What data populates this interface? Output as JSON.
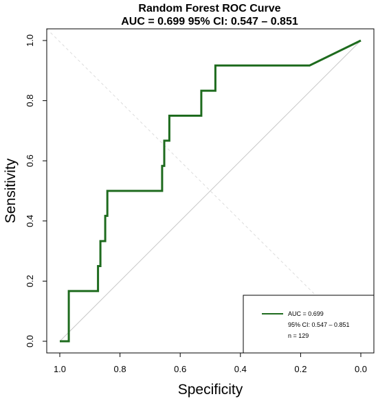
{
  "chart_data": {
    "type": "line",
    "title": "Random Forest ROC Curve",
    "subtitle": "AUC = 0.699 95% CI: 0.547 – 0.851",
    "xlabel": "Specificity",
    "ylabel": "Sensitivity",
    "xlim": [
      1.0,
      0.0
    ],
    "ylim": [
      0.0,
      1.0
    ],
    "x_reversed": true,
    "xticks": [
      "1.0",
      "0.8",
      "0.6",
      "0.4",
      "0.2",
      "0.0"
    ],
    "xtick_values": [
      1.0,
      0.8,
      0.6,
      0.4,
      0.2,
      0.0
    ],
    "yticks": [
      "0.0",
      "0.2",
      "0.4",
      "0.6",
      "0.8",
      "1.0"
    ],
    "ytick_values": [
      0.0,
      0.2,
      0.4,
      0.6,
      0.8,
      1.0
    ],
    "grid": false,
    "line_color": "#1e6b1e",
    "reference_line_color": "#c8c8c8",
    "series": [
      {
        "x": [
          1.0,
          0.97,
          0.97,
          0.873,
          0.873,
          0.865,
          0.865,
          0.849,
          0.849,
          0.842,
          0.842,
          0.833,
          0.833,
          0.66,
          0.66,
          0.653,
          0.653,
          0.636,
          0.636,
          0.53,
          0.53,
          0.504,
          0.504,
          0.483,
          0.483,
          0.17,
          0.0
        ],
        "y": [
          0.0,
          0.0,
          0.167,
          0.167,
          0.25,
          0.25,
          0.333,
          0.333,
          0.417,
          0.417,
          0.5,
          0.5,
          0.5,
          0.5,
          0.583,
          0.583,
          0.667,
          0.667,
          0.75,
          0.75,
          0.833,
          0.833,
          0.833,
          0.833,
          0.917,
          0.917,
          1.0
        ]
      }
    ],
    "legend": {
      "placement": "bottom-right",
      "entries": [
        "AUC = 0.699",
        "95% CI: 0.547 – 0.851",
        "n = 129"
      ]
    }
  }
}
